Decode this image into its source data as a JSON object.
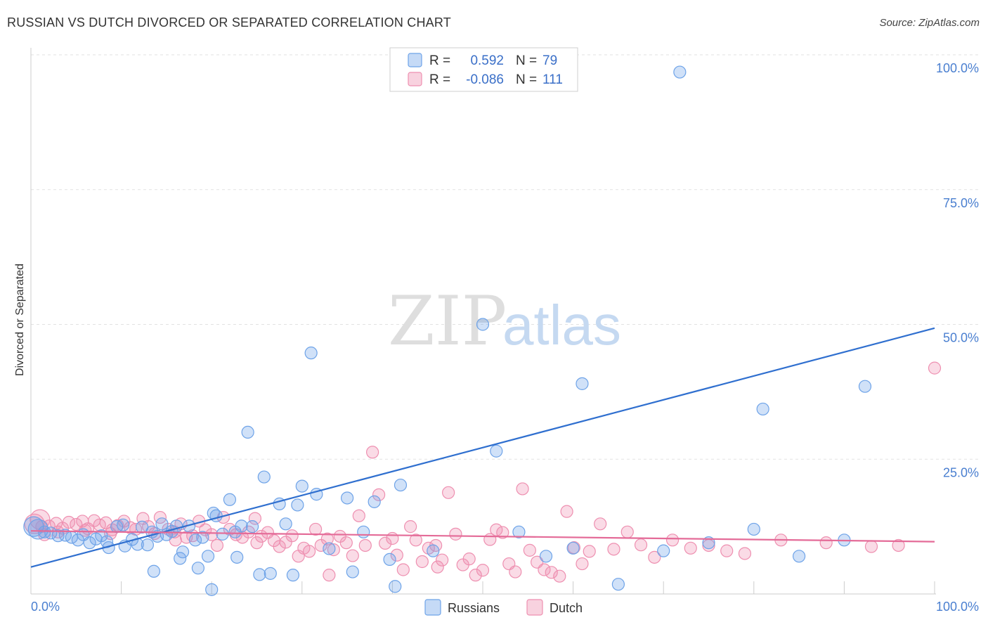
{
  "title": "RUSSIAN VS DUTCH DIVORCED OR SEPARATED CORRELATION CHART",
  "source": "Source: ZipAtlas.com",
  "watermark": {
    "zip": "ZIP",
    "atlas": "atlas"
  },
  "legend": {
    "r_label": "R =",
    "n_label": "N =",
    "russians": {
      "r": "0.592",
      "n": "79",
      "color": "#6ea3e8"
    },
    "dutch": {
      "r": "-0.086",
      "n": "111",
      "color": "#ee8fb0"
    }
  },
  "bottom_legend": {
    "russians": "Russians",
    "dutch": "Dutch"
  },
  "chart_data": {
    "type": "scatter",
    "ylabel": "Divorced or Separated",
    "xlabel": "",
    "xlim": [
      0,
      100
    ],
    "ylim": [
      0,
      100
    ],
    "x_tick_labels": [
      "0.0%",
      "100.0%"
    ],
    "y_tick_labels": [
      {
        "value": 100,
        "label": "100.0%"
      },
      {
        "value": 75,
        "label": "75.0%"
      },
      {
        "value": 50,
        "label": "50.0%"
      },
      {
        "value": 25,
        "label": "25.0%"
      }
    ],
    "series": [
      {
        "name": "Russians",
        "color": "#6ea3e8",
        "line_color": "#2f6fcf",
        "trend": {
          "x0": 0,
          "y0": 5.0,
          "x1": 100,
          "y1": 49.3
        },
        "points": [
          [
            0.3,
            12.5
          ],
          [
            0.8,
            12.0
          ],
          [
            1.5,
            11.5
          ],
          [
            2.2,
            11.3
          ],
          [
            3.0,
            10.8
          ],
          [
            3.8,
            10.9
          ],
          [
            4.5,
            10.5
          ],
          [
            5.2,
            10.0
          ],
          [
            5.8,
            11.0
          ],
          [
            6.5,
            9.5
          ],
          [
            7.2,
            10.2
          ],
          [
            7.8,
            10.8
          ],
          [
            8.4,
            9.7
          ],
          [
            8.6,
            8.6
          ],
          [
            9.5,
            12.5
          ],
          [
            10.2,
            12.8
          ],
          [
            10.4,
            8.9
          ],
          [
            11.2,
            10.1
          ],
          [
            11.8,
            9.2
          ],
          [
            12.3,
            12.4
          ],
          [
            12.9,
            9.1
          ],
          [
            13.4,
            11.5
          ],
          [
            14.0,
            10.7
          ],
          [
            14.5,
            13.0
          ],
          [
            15.0,
            11.0
          ],
          [
            15.6,
            11.6
          ],
          [
            16.1,
            12.6
          ],
          [
            16.5,
            6.6
          ],
          [
            16.8,
            7.8
          ],
          [
            17.5,
            12.6
          ],
          [
            18.2,
            10.0
          ],
          [
            19.0,
            10.5
          ],
          [
            19.6,
            7.0
          ],
          [
            20.2,
            15.0
          ],
          [
            20.5,
            14.5
          ],
          [
            21.2,
            11.1
          ],
          [
            22.0,
            17.5
          ],
          [
            22.6,
            11.5
          ],
          [
            23.3,
            12.6
          ],
          [
            24.0,
            30.0
          ],
          [
            24.5,
            12.5
          ],
          [
            25.3,
            3.6
          ],
          [
            25.8,
            21.7
          ],
          [
            26.5,
            3.8
          ],
          [
            27.5,
            16.7
          ],
          [
            28.2,
            13.0
          ],
          [
            29.0,
            3.5
          ],
          [
            29.5,
            16.5
          ],
          [
            30.0,
            20.0
          ],
          [
            31.0,
            44.7
          ],
          [
            31.6,
            18.5
          ],
          [
            33.0,
            8.4
          ],
          [
            35.0,
            17.8
          ],
          [
            36.8,
            11.5
          ],
          [
            38.0,
            17.1
          ],
          [
            39.7,
            6.4
          ],
          [
            40.3,
            1.4
          ],
          [
            40.9,
            20.2
          ],
          [
            44.5,
            8.0
          ],
          [
            50.0,
            50.0
          ],
          [
            51.5,
            26.5
          ],
          [
            54.0,
            11.5
          ],
          [
            57.0,
            7.0
          ],
          [
            60.0,
            8.5
          ],
          [
            65.0,
            1.8
          ],
          [
            70.0,
            8.0
          ],
          [
            71.8,
            96.8
          ],
          [
            75.0,
            9.5
          ],
          [
            80.0,
            12.0
          ],
          [
            81.0,
            34.3
          ],
          [
            85.0,
            7.0
          ],
          [
            90.0,
            10.0
          ],
          [
            92.3,
            38.5
          ],
          [
            61.0,
            39.0
          ],
          [
            18.5,
            4.8
          ],
          [
            13.6,
            4.2
          ],
          [
            20.0,
            0.8
          ],
          [
            22.8,
            6.8
          ],
          [
            35.6,
            4.1
          ]
        ]
      },
      {
        "name": "Dutch",
        "color": "#ee8fb0",
        "line_color": "#e46b98",
        "trend": {
          "x0": 0,
          "y0": 11.7,
          "x1": 100,
          "y1": 9.7
        },
        "points": [
          [
            0.4,
            13.0
          ],
          [
            1.2,
            12.5
          ],
          [
            2.0,
            12.6
          ],
          [
            2.8,
            13.1
          ],
          [
            3.5,
            12.2
          ],
          [
            4.2,
            13.3
          ],
          [
            5.0,
            12.9
          ],
          [
            5.7,
            13.5
          ],
          [
            6.3,
            12.1
          ],
          [
            7.0,
            13.6
          ],
          [
            7.6,
            12.8
          ],
          [
            8.3,
            13.2
          ],
          [
            9.0,
            11.9
          ],
          [
            9.6,
            12.7
          ],
          [
            10.3,
            13.5
          ],
          [
            11.0,
            12.3
          ],
          [
            11.6,
            12.0
          ],
          [
            12.4,
            14.0
          ],
          [
            13.0,
            12.5
          ],
          [
            13.7,
            11.2
          ],
          [
            14.3,
            14.2
          ],
          [
            15.2,
            12.0
          ],
          [
            15.9,
            11.5
          ],
          [
            16.6,
            13.0
          ],
          [
            17.2,
            10.5
          ],
          [
            17.9,
            10.8
          ],
          [
            18.6,
            13.5
          ],
          [
            19.3,
            11.9
          ],
          [
            20.0,
            11.0
          ],
          [
            20.6,
            9.0
          ],
          [
            21.3,
            14.2
          ],
          [
            22.0,
            12.0
          ],
          [
            22.7,
            11.0
          ],
          [
            23.4,
            10.5
          ],
          [
            24.1,
            11.5
          ],
          [
            24.8,
            14.0
          ],
          [
            25.5,
            10.7
          ],
          [
            26.2,
            11.4
          ],
          [
            26.9,
            9.9
          ],
          [
            27.5,
            8.8
          ],
          [
            28.2,
            9.6
          ],
          [
            28.9,
            10.8
          ],
          [
            29.6,
            7.0
          ],
          [
            30.2,
            8.5
          ],
          [
            30.8,
            7.9
          ],
          [
            31.5,
            12.0
          ],
          [
            32.1,
            9.0
          ],
          [
            32.8,
            10.2
          ],
          [
            33.5,
            8.2
          ],
          [
            34.2,
            10.7
          ],
          [
            34.9,
            9.5
          ],
          [
            35.6,
            7.1
          ],
          [
            36.3,
            14.5
          ],
          [
            37.0,
            9.0
          ],
          [
            37.8,
            26.3
          ],
          [
            38.5,
            18.4
          ],
          [
            39.2,
            9.4
          ],
          [
            40.0,
            10.3
          ],
          [
            40.5,
            7.2
          ],
          [
            41.2,
            4.5
          ],
          [
            42.0,
            12.5
          ],
          [
            42.6,
            10.0
          ],
          [
            43.3,
            6.0
          ],
          [
            44.0,
            8.5
          ],
          [
            44.8,
            9.0
          ],
          [
            45.5,
            6.3
          ],
          [
            46.2,
            18.8
          ],
          [
            47.0,
            11.1
          ],
          [
            47.8,
            5.4
          ],
          [
            48.5,
            6.5
          ],
          [
            49.2,
            3.5
          ],
          [
            50.0,
            4.4
          ],
          [
            50.8,
            10.1
          ],
          [
            51.5,
            11.9
          ],
          [
            52.2,
            11.4
          ],
          [
            52.9,
            5.6
          ],
          [
            53.6,
            4.1
          ],
          [
            54.4,
            19.5
          ],
          [
            55.2,
            8.1
          ],
          [
            56.0,
            5.9
          ],
          [
            56.8,
            4.5
          ],
          [
            57.6,
            4.0
          ],
          [
            58.5,
            3.3
          ],
          [
            59.3,
            15.3
          ],
          [
            60.1,
            8.6
          ],
          [
            61.0,
            5.6
          ],
          [
            61.8,
            7.9
          ],
          [
            63.0,
            13.0
          ],
          [
            64.5,
            8.3
          ],
          [
            66.0,
            11.5
          ],
          [
            67.5,
            9.1
          ],
          [
            69.0,
            6.8
          ],
          [
            71.0,
            10.0
          ],
          [
            73.0,
            8.5
          ],
          [
            75.0,
            9.0
          ],
          [
            77.0,
            8.0
          ],
          [
            79.0,
            7.5
          ],
          [
            83.0,
            10.0
          ],
          [
            88.0,
            9.5
          ],
          [
            93.0,
            8.8
          ],
          [
            96.0,
            9.0
          ],
          [
            100.0,
            41.9
          ],
          [
            1.5,
            11.0
          ],
          [
            3.0,
            11.5
          ],
          [
            6.0,
            11.8
          ],
          [
            8.8,
            11.2
          ],
          [
            16.0,
            10.0
          ],
          [
            25.0,
            9.5
          ],
          [
            33.0,
            3.5
          ],
          [
            45.0,
            5.0
          ],
          [
            1.0,
            13.8
          ]
        ]
      }
    ]
  }
}
